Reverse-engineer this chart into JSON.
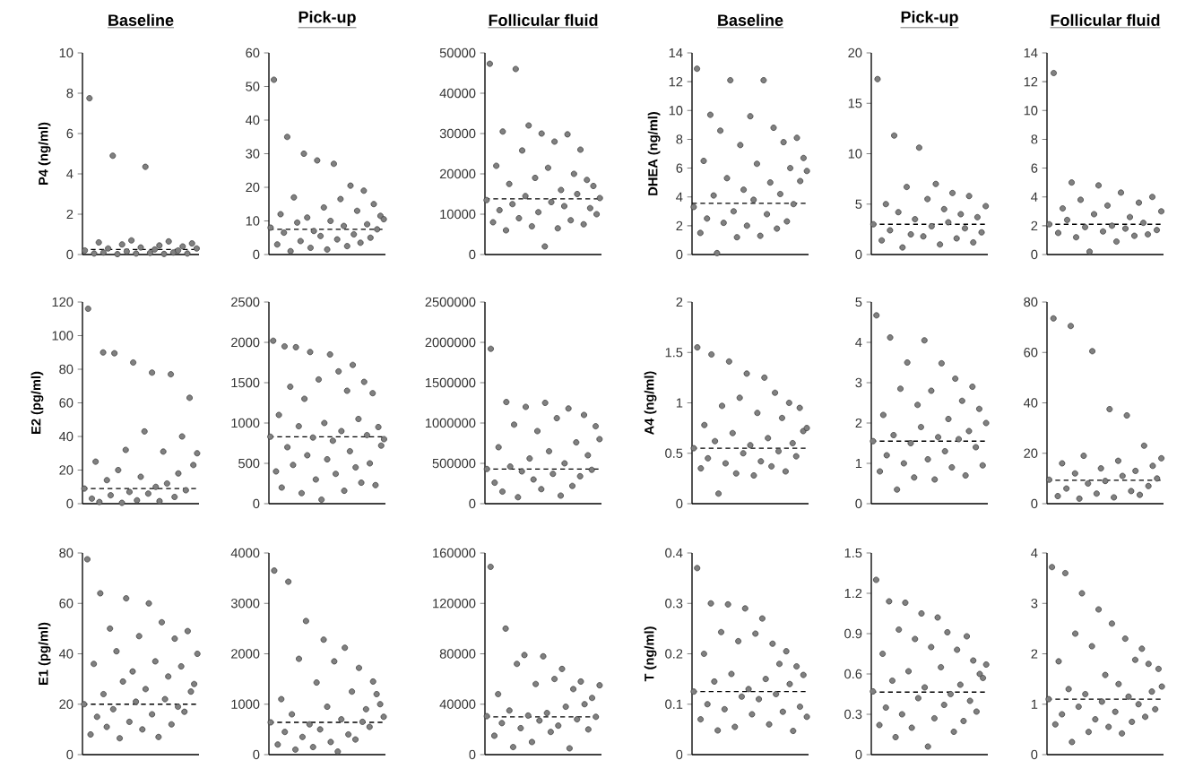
{
  "chart_data": [
    {
      "type": "scatter",
      "title": "Baseline",
      "ylabel": "P4 (ng/ml)",
      "color": "#808080",
      "marker": "circle",
      "ylim": [
        0,
        10
      ],
      "yticks": [
        0,
        2,
        4,
        6,
        8,
        10
      ],
      "ref_lines": [
        {
          "axis": "y",
          "value": 0.25
        }
      ],
      "categories": [
        null,
        null,
        null,
        null,
        null,
        null,
        null,
        null,
        null,
        null,
        null,
        null,
        null,
        null,
        null,
        null,
        null,
        null,
        null,
        null,
        null,
        null,
        null,
        null,
        null
      ],
      "values": [
        0.2,
        7.75,
        0.05,
        0.6,
        0.1,
        0.3,
        4.9,
        0.02,
        0.5,
        0.15,
        0.7,
        0.05,
        0.35,
        4.35,
        0.08,
        0.25,
        0.45,
        0.03,
        0.65,
        0.1,
        0.2,
        0.4,
        0.05,
        0.55,
        0.3
      ]
    },
    {
      "type": "scatter",
      "title": "Pick-up",
      "color": "#808080",
      "marker": "circle",
      "ylim": [
        0,
        60
      ],
      "yticks": [
        0,
        10,
        20,
        30,
        40,
        50,
        60
      ],
      "ref_lines": [
        {
          "axis": "y",
          "value": 7.5
        }
      ],
      "categories": [
        null,
        null,
        null,
        null,
        null,
        null,
        null,
        null,
        null,
        null,
        null,
        null,
        null,
        null,
        null,
        null,
        null,
        null,
        null,
        null,
        null,
        null,
        null,
        null,
        null,
        null,
        null,
        null,
        null,
        null,
        null,
        null,
        null,
        null,
        null
      ],
      "values": [
        8,
        52,
        3,
        12,
        6.5,
        35,
        1,
        17,
        9.5,
        4,
        30,
        11,
        2,
        7,
        28,
        5.5,
        14,
        1.5,
        10,
        27,
        4.5,
        16.5,
        8.5,
        2.5,
        20.5,
        6,
        13,
        3.5,
        19,
        9,
        5,
        15,
        7.5,
        11.5,
        10.5
      ]
    },
    {
      "type": "scatter",
      "title": "Follicular fluid",
      "color": "#808080",
      "marker": "circle",
      "ylim": [
        0,
        50000
      ],
      "yticks": [
        0,
        10000,
        20000,
        30000,
        40000,
        50000
      ],
      "ref_lines": [
        {
          "axis": "y",
          "value": 13800
        }
      ],
      "categories": [
        null,
        null,
        null,
        null,
        null,
        null,
        null,
        null,
        null,
        null,
        null,
        null,
        null,
        null,
        null,
        null,
        null,
        null,
        null,
        null,
        null,
        null,
        null,
        null,
        null,
        null,
        null,
        null,
        null,
        null,
        null,
        null,
        null,
        null,
        null,
        null
      ],
      "values": [
        13500,
        47300,
        8000,
        22000,
        11000,
        30500,
        6000,
        17500,
        12500,
        46000,
        9000,
        25800,
        14500,
        32000,
        7000,
        19000,
        10500,
        30000,
        2000,
        21500,
        13000,
        28000,
        6500,
        16000,
        12000,
        29800,
        8500,
        20000,
        15000,
        26000,
        7500,
        18500,
        11500,
        17000,
        10000,
        14000
      ]
    },
    {
      "type": "scatter",
      "title": "Baseline",
      "ylabel": "DHEA (ng/ml)",
      "color": "#808080",
      "marker": "circle",
      "ylim": [
        0,
        14
      ],
      "yticks": [
        0,
        2,
        4,
        6,
        8,
        10,
        12,
        14
      ],
      "ref_lines": [
        {
          "axis": "y",
          "value": 3.55
        }
      ],
      "categories": [
        null,
        null,
        null,
        null,
        null,
        null,
        null,
        null,
        null,
        null,
        null,
        null,
        null,
        null,
        null,
        null,
        null,
        null,
        null,
        null,
        null,
        null,
        null,
        null,
        null,
        null,
        null,
        null,
        null,
        null,
        null,
        null,
        null,
        null,
        null
      ],
      "values": [
        3.3,
        12.9,
        1.5,
        6.5,
        2.5,
        9.7,
        4.1,
        0.1,
        8.6,
        2.2,
        5.3,
        12.1,
        3,
        1.2,
        7.6,
        4.5,
        2,
        9.6,
        3.8,
        6.3,
        1.3,
        12.1,
        2.8,
        5,
        8.8,
        1.8,
        4.2,
        7.8,
        2.3,
        6,
        3.5,
        8.1,
        5.1,
        6.7,
        5.8
      ]
    },
    {
      "type": "scatter",
      "title": "Pick-up",
      "color": "#808080",
      "marker": "circle",
      "ylim": [
        0,
        20
      ],
      "yticks": [
        0,
        5,
        10,
        15,
        20
      ],
      "ref_lines": [
        {
          "axis": "y",
          "value": 3
        }
      ],
      "categories": [
        null,
        null,
        null,
        null,
        null,
        null,
        null,
        null,
        null,
        null,
        null,
        null,
        null,
        null,
        null,
        null,
        null,
        null,
        null,
        null,
        null,
        null,
        null,
        null,
        null,
        null,
        null,
        null
      ],
      "values": [
        3,
        17.4,
        1.4,
        5,
        2.4,
        11.8,
        4.2,
        0.7,
        6.7,
        2,
        3.5,
        10.6,
        1.8,
        5.5,
        2.8,
        7,
        1,
        4.5,
        3.2,
        6.1,
        1.6,
        4,
        2.6,
        5.8,
        1.2,
        3.7,
        2.2,
        4.8
      ]
    },
    {
      "type": "scatter",
      "title": "Follicular fluid",
      "color": "#808080",
      "marker": "circle",
      "ylim": [
        0,
        14
      ],
      "yticks": [
        0,
        2,
        4,
        6,
        8,
        10,
        12,
        14
      ],
      "ref_lines": [
        {
          "axis": "y",
          "value": 2.1
        }
      ],
      "categories": [
        null,
        null,
        null,
        null,
        null,
        null,
        null,
        null,
        null,
        null,
        null,
        null,
        null,
        null,
        null,
        null,
        null,
        null,
        null,
        null,
        null,
        null,
        null,
        null,
        null,
        null
      ],
      "values": [
        2.1,
        12.6,
        1.5,
        3.2,
        2.4,
        5,
        1.2,
        3.8,
        1.9,
        0.2,
        2.8,
        4.8,
        1.6,
        3.4,
        2,
        0.9,
        4.3,
        1.8,
        2.6,
        1.3,
        3.6,
        2.2,
        1.4,
        4,
        1.7,
        3
      ]
    },
    {
      "type": "scatter",
      "ylabel": "E2 (pg/ml)",
      "color": "#808080",
      "marker": "circle",
      "ylim": [
        0,
        120
      ],
      "yticks": [
        0,
        20,
        40,
        60,
        80,
        100,
        120
      ],
      "ref_lines": [
        {
          "axis": "y",
          "value": 9
        }
      ],
      "categories": [
        null,
        null,
        null,
        null,
        null,
        null,
        null,
        null,
        null,
        null,
        null,
        null,
        null,
        null,
        null,
        null,
        null,
        null,
        null,
        null,
        null,
        null,
        null,
        null,
        null,
        null,
        null,
        null,
        null,
        null,
        null
      ],
      "values": [
        9,
        116,
        3,
        25,
        1,
        90,
        14,
        5,
        89.5,
        20,
        0.5,
        32,
        7,
        84,
        2,
        16,
        43,
        6,
        78,
        10,
        1.5,
        31,
        12,
        77,
        4,
        18,
        40,
        8,
        63,
        23,
        30
      ]
    },
    {
      "type": "scatter",
      "color": "#808080",
      "marker": "circle",
      "ylim": [
        0,
        2500
      ],
      "yticks": [
        0,
        500,
        1000,
        1500,
        2000,
        2500
      ],
      "ref_lines": [
        {
          "axis": "y",
          "value": 830
        }
      ],
      "categories": [
        null,
        null,
        null,
        null,
        null,
        null,
        null,
        null,
        null,
        null,
        null,
        null,
        null,
        null,
        null,
        null,
        null,
        null,
        null,
        null,
        null,
        null,
        null,
        null,
        null,
        null,
        null,
        null,
        null,
        null,
        null,
        null,
        null,
        null,
        null,
        null,
        null,
        null,
        null,
        null,
        null
      ],
      "values": [
        830,
        2020,
        400,
        1100,
        200,
        1950,
        700,
        1450,
        480,
        1940,
        960,
        130,
        1300,
        600,
        1880,
        820,
        300,
        1540,
        50,
        1000,
        550,
        1850,
        780,
        370,
        1640,
        900,
        160,
        1400,
        650,
        1720,
        450,
        1050,
        260,
        1510,
        850,
        500,
        1370,
        230,
        950,
        720,
        800
      ]
    },
    {
      "type": "scatter",
      "color": "#808080",
      "marker": "circle",
      "ylim": [
        0,
        2500000
      ],
      "yticks": [
        0,
        500000,
        1000000,
        1500000,
        2000000,
        2500000
      ],
      "ref_lines": [
        {
          "axis": "y",
          "value": 430000
        }
      ],
      "categories": [
        null,
        null,
        null,
        null,
        null,
        null,
        null,
        null,
        null,
        null,
        null,
        null,
        null,
        null,
        null,
        null,
        null,
        null,
        null,
        null,
        null,
        null,
        null,
        null,
        null,
        null,
        null,
        null,
        null,
        null
      ],
      "values": [
        430000,
        1920000,
        260000,
        700000,
        150000,
        1260000,
        460000,
        980000,
        80000,
        400000,
        1200000,
        560000,
        300000,
        900000,
        180000,
        1250000,
        650000,
        370000,
        1060000,
        100000,
        500000,
        1180000,
        220000,
        760000,
        340000,
        1100000,
        600000,
        420000,
        960000,
        800000
      ]
    },
    {
      "type": "scatter",
      "ylabel": "A4 (ng/ml)",
      "color": "#808080",
      "marker": "circle",
      "ylim": [
        0,
        2
      ],
      "yticks": [
        0,
        0.5,
        1,
        1.5,
        2
      ],
      "ref_lines": [
        {
          "axis": "y",
          "value": 0.55
        }
      ],
      "categories": [
        null,
        null,
        null,
        null,
        null,
        null,
        null,
        null,
        null,
        null,
        null,
        null,
        null,
        null,
        null,
        null,
        null,
        null,
        null,
        null,
        null,
        null,
        null,
        null,
        null,
        null,
        null,
        null,
        null,
        null,
        null,
        null,
        null
      ],
      "values": [
        0.55,
        1.55,
        0.35,
        0.78,
        0.45,
        1.48,
        0.62,
        0.1,
        0.97,
        0.4,
        1.41,
        0.7,
        0.3,
        1.05,
        0.5,
        1.29,
        0.58,
        0.28,
        0.9,
        0.42,
        1.25,
        0.65,
        0.37,
        1.1,
        0.52,
        0.85,
        0.32,
        1.0,
        0.6,
        0.47,
        0.95,
        0.72,
        0.75
      ]
    },
    {
      "type": "scatter",
      "color": "#808080",
      "marker": "circle",
      "ylim": [
        0,
        5
      ],
      "yticks": [
        0,
        1,
        2,
        3,
        4,
        5
      ],
      "ref_lines": [
        {
          "axis": "y",
          "value": 1.55
        }
      ],
      "categories": [
        null,
        null,
        null,
        null,
        null,
        null,
        null,
        null,
        null,
        null,
        null,
        null,
        null,
        null,
        null,
        null,
        null,
        null,
        null,
        null,
        null,
        null,
        null,
        null,
        null,
        null,
        null,
        null,
        null,
        null,
        null,
        null,
        null,
        null
      ],
      "values": [
        1.55,
        4.67,
        0.8,
        2.2,
        1.2,
        4.12,
        1.7,
        0.35,
        2.85,
        1.0,
        3.5,
        1.5,
        0.65,
        2.45,
        1.9,
        4.05,
        1.1,
        2.8,
        0.6,
        1.65,
        3.48,
        1.3,
        2.1,
        0.9,
        3.1,
        1.6,
        2.55,
        0.7,
        1.8,
        2.9,
        1.4,
        2.35,
        0.95,
        2
      ]
    },
    {
      "type": "scatter",
      "color": "#808080",
      "marker": "circle",
      "ylim": [
        0,
        80
      ],
      "yticks": [
        0,
        20,
        40,
        60,
        80
      ],
      "ref_lines": [
        {
          "axis": "y",
          "value": 9.3
        }
      ],
      "categories": [
        null,
        null,
        null,
        null,
        null,
        null,
        null,
        null,
        null,
        null,
        null,
        null,
        null,
        null,
        null,
        null,
        null,
        null,
        null,
        null,
        null,
        null,
        null,
        null,
        null,
        null,
        null
      ],
      "values": [
        9.5,
        73.5,
        3,
        16,
        6,
        70.5,
        12,
        2,
        19,
        8,
        60.5,
        4,
        14,
        9,
        37.5,
        2.5,
        17,
        11,
        35,
        5,
        13,
        3.5,
        23,
        7,
        15,
        10,
        18
      ]
    },
    {
      "type": "scatter",
      "ylabel": "E1 (pg/ml)",
      "color": "#808080",
      "marker": "circle",
      "ylim": [
        0,
        80
      ],
      "yticks": [
        0,
        20,
        40,
        60,
        80
      ],
      "ref_lines": [
        {
          "axis": "y",
          "value": 20
        }
      ],
      "categories": [
        null,
        null,
        null,
        null,
        null,
        null,
        null,
        null,
        null,
        null,
        null,
        null,
        null,
        null,
        null,
        null,
        null,
        null,
        null,
        null,
        null,
        null,
        null,
        null,
        null,
        null,
        null,
        null,
        null,
        null,
        null,
        null,
        null,
        null,
        null,
        null
      ],
      "values": [
        20,
        77.5,
        8,
        36,
        15,
        64,
        24,
        11,
        50,
        18,
        41,
        6.5,
        29,
        62,
        13,
        33,
        21,
        47,
        10,
        26,
        60,
        16,
        37,
        7,
        52.5,
        22,
        31,
        12,
        46,
        19,
        35,
        17,
        49,
        25,
        28,
        40
      ]
    },
    {
      "type": "scatter",
      "color": "#808080",
      "marker": "circle",
      "ylim": [
        0,
        4000
      ],
      "yticks": [
        0,
        1000,
        2000,
        3000,
        4000
      ],
      "ref_lines": [
        {
          "axis": "y",
          "value": 640
        }
      ],
      "categories": [
        null,
        null,
        null,
        null,
        null,
        null,
        null,
        null,
        null,
        null,
        null,
        null,
        null,
        null,
        null,
        null,
        null,
        null,
        null,
        null,
        null,
        null,
        null,
        null,
        null,
        null,
        null,
        null,
        null,
        null,
        null,
        null,
        null
      ],
      "values": [
        640,
        3650,
        200,
        1100,
        450,
        3430,
        800,
        100,
        1900,
        350,
        2650,
        600,
        150,
        1430,
        500,
        2280,
        950,
        250,
        1850,
        60,
        700,
        2120,
        400,
        1250,
        300,
        1720,
        650,
        900,
        550,
        1450,
        1200,
        1000,
        750
      ]
    },
    {
      "type": "scatter",
      "color": "#808080",
      "marker": "circle",
      "ylim": [
        0,
        160000
      ],
      "yticks": [
        0,
        40000,
        80000,
        120000,
        160000
      ],
      "ref_lines": [
        {
          "axis": "y",
          "value": 30000
        }
      ],
      "categories": [
        null,
        null,
        null,
        null,
        null,
        null,
        null,
        null,
        null,
        null,
        null,
        null,
        null,
        null,
        null,
        null,
        null,
        null,
        null,
        null,
        null,
        null,
        null,
        null,
        null,
        null,
        null,
        null,
        null,
        null,
        null
      ],
      "values": [
        30500,
        149000,
        15000,
        48000,
        25000,
        100000,
        35000,
        6000,
        72000,
        21000,
        79000,
        31000,
        10000,
        56000,
        27000,
        78000,
        33000,
        18000,
        60000,
        23000,
        68000,
        38000,
        5000,
        52000,
        28000,
        58000,
        40000,
        20000,
        45000,
        30000,
        55000
      ]
    },
    {
      "type": "scatter",
      "ylabel": "T (ng/ml)",
      "color": "#808080",
      "marker": "circle",
      "ylim": [
        0,
        0.4
      ],
      "yticks": [
        0,
        0.1,
        0.2,
        0.3,
        0.4
      ],
      "ref_lines": [
        {
          "axis": "y",
          "value": 0.125
        }
      ],
      "categories": [
        null,
        null,
        null,
        null,
        null,
        null,
        null,
        null,
        null,
        null,
        null,
        null,
        null,
        null,
        null,
        null,
        null,
        null,
        null,
        null,
        null,
        null,
        null,
        null,
        null,
        null,
        null,
        null,
        null,
        null,
        null,
        null,
        null,
        null
      ],
      "values": [
        0.125,
        0.37,
        0.07,
        0.2,
        0.1,
        0.3,
        0.145,
        0.048,
        0.243,
        0.09,
        0.298,
        0.16,
        0.055,
        0.225,
        0.115,
        0.29,
        0.13,
        0.08,
        0.24,
        0.11,
        0.27,
        0.15,
        0.06,
        0.22,
        0.12,
        0.18,
        0.085,
        0.205,
        0.14,
        0.047,
        0.175,
        0.095,
        0.158,
        0.075
      ]
    },
    {
      "type": "scatter",
      "color": "#808080",
      "marker": "circle",
      "ylim": [
        0,
        1.5
      ],
      "yticks": [
        0,
        0.3,
        0.6,
        0.9,
        1.2,
        1.5
      ],
      "ref_lines": [
        {
          "axis": "y",
          "value": 0.465
        }
      ],
      "categories": [
        null,
        null,
        null,
        null,
        null,
        null,
        null,
        null,
        null,
        null,
        null,
        null,
        null,
        null,
        null,
        null,
        null,
        null,
        null,
        null,
        null,
        null,
        null,
        null,
        null,
        null,
        null,
        null,
        null,
        null,
        null,
        null,
        null,
        null,
        null,
        null
      ],
      "values": [
        0.47,
        1.3,
        0.22,
        0.75,
        0.35,
        1.14,
        0.55,
        0.13,
        0.93,
        0.3,
        1.13,
        0.62,
        0.2,
        0.86,
        0.42,
        1.05,
        0.5,
        0.06,
        0.8,
        0.27,
        1.02,
        0.65,
        0.37,
        0.91,
        0.45,
        0.17,
        0.78,
        0.52,
        0.25,
        0.88,
        0.4,
        0.7,
        0.32,
        0.6,
        0.57,
        0.67
      ]
    },
    {
      "type": "scatter",
      "color": "#808080",
      "marker": "circle",
      "ylim": [
        0,
        4
      ],
      "yticks": [
        0,
        1,
        2,
        3,
        4
      ],
      "ref_lines": [
        {
          "axis": "y",
          "value": 1.1
        }
      ],
      "categories": [
        null,
        null,
        null,
        null,
        null,
        null,
        null,
        null,
        null,
        null,
        null,
        null,
        null,
        null,
        null,
        null,
        null,
        null,
        null,
        null,
        null,
        null,
        null,
        null,
        null,
        null,
        null,
        null,
        null,
        null,
        null,
        null,
        null,
        null,
        null
      ],
      "values": [
        1.1,
        3.72,
        0.6,
        1.85,
        0.8,
        3.6,
        1.3,
        0.25,
        2.4,
        0.95,
        3.2,
        1.2,
        0.45,
        2.15,
        0.7,
        2.88,
        1.05,
        1.58,
        0.55,
        2.6,
        0.85,
        1.4,
        0.42,
        2.3,
        1.15,
        0.65,
        1.88,
        1.0,
        2.1,
        0.75,
        1.8,
        1.25,
        0.9,
        1.7,
        1.35
      ]
    }
  ]
}
